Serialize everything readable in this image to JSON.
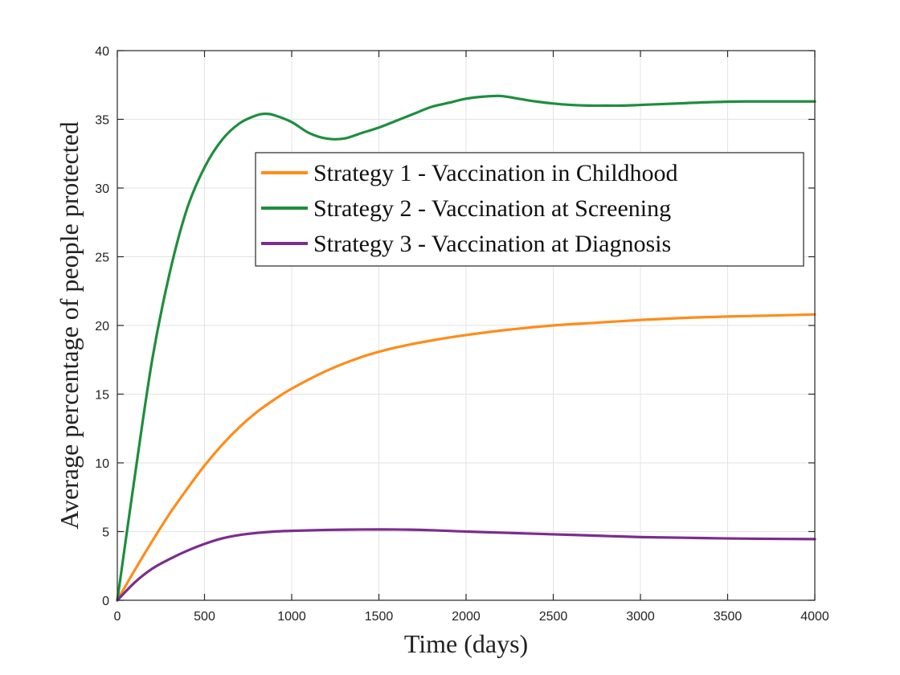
{
  "chart_data": {
    "type": "line",
    "title": "",
    "xlabel": "Time (days)",
    "ylabel": "Average percentage of people protected",
    "xlim": [
      0,
      4000
    ],
    "ylim": [
      0,
      40
    ],
    "xticks": [
      0,
      500,
      1000,
      1500,
      2000,
      2500,
      3000,
      3500,
      4000
    ],
    "yticks": [
      0,
      5,
      10,
      15,
      20,
      25,
      30,
      35,
      40
    ],
    "xtick_labels": [
      "0",
      "500",
      "1000",
      "1500",
      "2000",
      "2500",
      "3000",
      "3500",
      "4000"
    ],
    "ytick_labels": [
      "0",
      "5",
      "10",
      "15",
      "20",
      "25",
      "30",
      "35",
      "40"
    ],
    "grid": true,
    "legend_position": "upper-right",
    "series": [
      {
        "name": "Strategy 1 - Vaccination in Childhood",
        "color": "#ff8c1a",
        "x": [
          0,
          100,
          200,
          300,
          400,
          500,
          600,
          700,
          800,
          900,
          1000,
          1200,
          1400,
          1600,
          1800,
          2000,
          2250,
          2500,
          2750,
          3000,
          3250,
          3500,
          3750,
          4000
        ],
        "y": [
          0,
          2.2,
          4.3,
          6.3,
          8.1,
          9.8,
          11.3,
          12.6,
          13.7,
          14.6,
          15.4,
          16.7,
          17.7,
          18.4,
          18.9,
          19.3,
          19.7,
          20.0,
          20.2,
          20.4,
          20.55,
          20.65,
          20.72,
          20.8
        ]
      },
      {
        "name": "Strategy 2 - Vaccination at Screening",
        "color": "#1e8e3e",
        "x": [
          0,
          100,
          200,
          300,
          400,
          500,
          600,
          700,
          800,
          850,
          900,
          1000,
          1100,
          1200,
          1300,
          1400,
          1500,
          1600,
          1700,
          1800,
          1900,
          2000,
          2100,
          2200,
          2300,
          2400,
          2500,
          2600,
          2700,
          2800,
          2900,
          3000,
          3200,
          3400,
          3600,
          3800,
          4000
        ],
        "y": [
          0,
          9.0,
          17.5,
          23.8,
          28.5,
          31.5,
          33.5,
          34.7,
          35.3,
          35.4,
          35.3,
          34.8,
          34.0,
          33.6,
          33.6,
          34.0,
          34.4,
          34.9,
          35.4,
          35.9,
          36.2,
          36.5,
          36.65,
          36.7,
          36.5,
          36.3,
          36.15,
          36.05,
          36.0,
          36.0,
          36.0,
          36.05,
          36.15,
          36.25,
          36.3,
          36.3,
          36.3
        ]
      },
      {
        "name": "Strategy 3 - Vaccination at Diagnosis",
        "color": "#7b2d8e",
        "x": [
          0,
          100,
          200,
          300,
          400,
          500,
          600,
          700,
          800,
          900,
          1000,
          1200,
          1400,
          1600,
          1800,
          2000,
          2250,
          2500,
          2750,
          3000,
          3250,
          3500,
          3750,
          4000
        ],
        "y": [
          0,
          1.3,
          2.3,
          3.0,
          3.6,
          4.1,
          4.5,
          4.75,
          4.9,
          5.0,
          5.05,
          5.12,
          5.15,
          5.15,
          5.1,
          5.0,
          4.9,
          4.8,
          4.7,
          4.6,
          4.55,
          4.5,
          4.47,
          4.45
        ]
      }
    ]
  }
}
